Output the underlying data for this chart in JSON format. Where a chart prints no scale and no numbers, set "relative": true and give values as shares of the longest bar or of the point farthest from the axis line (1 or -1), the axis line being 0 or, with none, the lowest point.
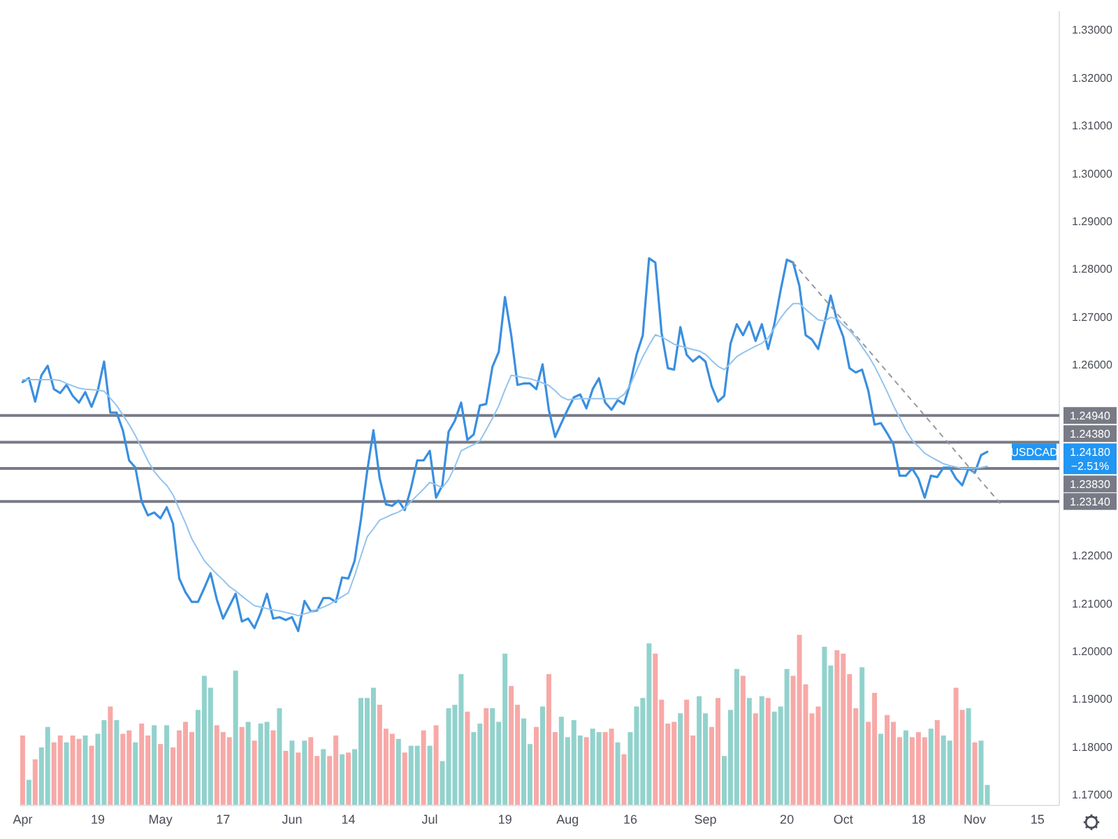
{
  "chart_data": [
    {
      "type": "line",
      "categories": [
        "Apr",
        null,
        null,
        null,
        null,
        null,
        null,
        null,
        null,
        null,
        null,
        null,
        "19",
        null,
        null,
        null,
        null,
        null,
        null,
        null,
        null,
        null,
        "May",
        null,
        null,
        null,
        null,
        null,
        null,
        null,
        null,
        null,
        "17",
        null,
        null,
        null,
        null,
        null,
        null,
        null,
        null,
        null,
        null,
        "Jun",
        null,
        null,
        null,
        null,
        null,
        null,
        null,
        null,
        "14",
        null,
        null,
        null,
        null,
        null,
        null,
        null,
        null,
        null,
        null,
        null,
        null,
        "Jul",
        null,
        null,
        null,
        null,
        null,
        null,
        null,
        null,
        null,
        null,
        null,
        "19",
        null,
        null,
        null,
        null,
        null,
        null,
        null,
        null,
        null,
        "Aug",
        null,
        null,
        null,
        null,
        null,
        null,
        null,
        null,
        null,
        "16",
        null,
        null,
        null,
        null,
        null,
        null,
        null,
        null,
        null,
        null,
        null,
        "Sep",
        null,
        null,
        null,
        null,
        null,
        null,
        null,
        null,
        null,
        null,
        null,
        null,
        "20",
        null,
        null,
        null,
        null,
        null,
        null,
        null,
        null,
        "Oct",
        null,
        null,
        null,
        null,
        null,
        null,
        null,
        null,
        null,
        null,
        null,
        "18",
        null,
        null,
        null,
        null,
        null,
        null,
        null,
        null,
        "Nov",
        null,
        null,
        null,
        null,
        null,
        null,
        null,
        null,
        null,
        "15",
        null,
        null,
        null
      ],
      "series": [
        {
          "type": "line",
          "color": "#3a8fe0",
          "values": [
            1.2564,
            1.2572,
            1.2523,
            1.2578,
            1.2598,
            1.2549,
            1.2541,
            1.2558,
            1.2535,
            1.2521,
            1.2543,
            1.2512,
            1.2546,
            1.2607,
            1.25,
            1.25,
            1.2463,
            1.24,
            1.2385,
            1.2314,
            1.2285,
            1.2291,
            1.2279,
            1.2302,
            1.2268,
            1.2153,
            1.2124,
            1.2104,
            1.2104,
            1.2133,
            1.2164,
            1.2109,
            1.2069,
            1.2095,
            1.2121,
            1.2063,
            1.2069,
            1.2049,
            1.2081,
            1.2121,
            1.2069,
            1.2072,
            1.2066,
            1.2072,
            1.2043,
            1.2106,
            1.2084,
            1.2086,
            1.2112,
            1.2112,
            1.2104,
            1.2155,
            1.2153,
            1.219,
            1.2276,
            1.2377,
            1.2463,
            1.2362,
            1.2308,
            1.2305,
            1.2316,
            1.2296,
            1.2342,
            1.24,
            1.24,
            1.242,
            1.2322,
            1.2348,
            1.246,
            1.2483,
            1.2521,
            1.2443,
            1.2454,
            1.2515,
            1.2518,
            1.2596,
            1.2627,
            1.2742,
            1.2662,
            1.2558,
            1.2561,
            1.2561,
            1.2549,
            1.2601,
            1.2506,
            1.2449,
            1.2478,
            1.2506,
            1.2532,
            1.2538,
            1.2509,
            1.2549,
            1.2572,
            1.2521,
            1.2506,
            1.2526,
            1.2518,
            1.2561,
            1.2621,
            1.2662,
            1.2823,
            1.2814,
            1.2667,
            1.2593,
            1.259,
            1.2679,
            1.2621,
            1.2607,
            1.2618,
            1.2607,
            1.2555,
            1.2523,
            1.2535,
            1.2644,
            1.2685,
            1.2662,
            1.269,
            1.265,
            1.2685,
            1.2633,
            1.2685,
            1.2756,
            1.282,
            1.2814,
            1.2765,
            1.2662,
            1.2653,
            1.2633,
            1.2687,
            1.2745,
            1.2693,
            1.2659,
            1.2593,
            1.2584,
            1.259,
            1.2546,
            1.2475,
            1.2478,
            1.2457,
            1.2434,
            1.2368,
            1.2368,
            1.2383,
            1.2362,
            1.2322,
            1.2368,
            1.2365,
            1.2385,
            1.2385,
            1.2362,
            1.2348,
            1.2383,
            1.2374,
            1.2411,
            1.2418,
            null,
            null,
            null,
            null,
            null,
            null,
            null,
            null,
            null,
            null,
            null
          ]
        },
        {
          "type": "line",
          "color": "#93c3ee",
          "values": [
            1.2569,
            1.2569,
            1.2569,
            1.2569,
            1.2569,
            1.2569,
            1.2567,
            1.2561,
            1.2556,
            1.2551,
            1.2549,
            1.2548,
            1.2547,
            1.2545,
            1.253,
            1.2515,
            1.2495,
            1.2475,
            1.2452,
            1.2426,
            1.2399,
            1.2377,
            1.2361,
            1.2348,
            1.2328,
            1.2298,
            1.2269,
            1.2236,
            1.2213,
            1.219,
            1.2176,
            1.2162,
            1.215,
            1.2136,
            1.2127,
            1.2116,
            1.2106,
            1.2096,
            1.2093,
            1.209,
            1.2087,
            1.2085,
            1.2082,
            1.2079,
            1.2075,
            1.2079,
            1.2083,
            1.2088,
            1.2093,
            1.2099,
            1.2107,
            1.2115,
            1.2123,
            1.2159,
            1.22,
            1.224,
            1.2257,
            1.2275,
            1.2281,
            1.2287,
            1.2292,
            1.23,
            1.2314,
            1.2327,
            1.234,
            1.2354,
            1.2349,
            1.2343,
            1.236,
            1.2387,
            1.242,
            1.2427,
            1.2433,
            1.2441,
            1.2464,
            1.2488,
            1.2514,
            1.2548,
            1.2578,
            1.2576,
            1.2573,
            1.2571,
            1.2567,
            1.2562,
            1.2557,
            1.2546,
            1.2533,
            1.2527,
            1.2528,
            1.2529,
            1.2529,
            1.2529,
            1.2529,
            1.2529,
            1.2529,
            1.2529,
            1.2538,
            1.2558,
            1.2588,
            1.2617,
            1.2641,
            1.2663,
            1.2658,
            1.2651,
            1.2643,
            1.2639,
            1.2636,
            1.2632,
            1.2629,
            1.2622,
            1.2609,
            1.2597,
            1.259,
            1.2603,
            1.2617,
            1.2625,
            1.2632,
            1.2639,
            1.2645,
            1.2656,
            1.2677,
            1.2698,
            1.2715,
            1.2728,
            1.2728,
            1.2716,
            1.2705,
            1.2694,
            1.2692,
            1.2699,
            1.2697,
            1.2683,
            1.2672,
            1.2657,
            1.2638,
            1.2619,
            1.2597,
            1.2571,
            1.2544,
            1.2515,
            1.2489,
            1.2463,
            1.2442,
            1.2429,
            1.2415,
            1.2407,
            1.24,
            1.2393,
            1.2389,
            1.2386,
            1.2383,
            1.2383,
            1.2384,
            1.2385,
            1.2388,
            null,
            null,
            null,
            null,
            null,
            null,
            null,
            null,
            null,
            null,
            null
          ]
        },
        {
          "type": "line",
          "color": "#9598a1",
          "line_style": "dashed",
          "values": [
            null,
            null,
            null,
            null,
            null,
            null,
            null,
            null,
            null,
            null,
            null,
            null,
            null,
            null,
            null,
            null,
            null,
            null,
            null,
            null,
            null,
            null,
            null,
            null,
            null,
            null,
            null,
            null,
            null,
            null,
            null,
            null,
            null,
            null,
            null,
            null,
            null,
            null,
            null,
            null,
            null,
            null,
            null,
            null,
            null,
            null,
            null,
            null,
            null,
            null,
            null,
            null,
            null,
            null,
            null,
            null,
            null,
            null,
            null,
            null,
            null,
            null,
            null,
            null,
            null,
            null,
            null,
            null,
            null,
            null,
            null,
            null,
            null,
            null,
            null,
            null,
            null,
            null,
            null,
            null,
            null,
            null,
            null,
            null,
            null,
            null,
            null,
            null,
            null,
            null,
            null,
            null,
            null,
            null,
            null,
            null,
            null,
            null,
            null,
            null,
            null,
            null,
            null,
            null,
            null,
            null,
            null,
            null,
            null,
            null,
            null,
            null,
            null,
            null,
            null,
            null,
            null,
            null,
            null,
            null,
            null,
            null,
            null,
            1.2814,
            null,
            null,
            null,
            null,
            null,
            null,
            null,
            null,
            null,
            null,
            null,
            null,
            null,
            null,
            null,
            null,
            null,
            null,
            null,
            null,
            null,
            null,
            null,
            null,
            null,
            null,
            null,
            null,
            null,
            null,
            null,
            null,
            1.2311,
            null,
            null,
            null,
            null,
            null,
            null,
            null,
            null,
            null
          ]
        }
      ],
      "ylim": [
        1.1678,
        1.334
      ],
      "yticks": [
        {
          "value": 1.17,
          "label": "1.17000"
        },
        {
          "value": 1.18,
          "label": "1.18000"
        },
        {
          "value": 1.19,
          "label": "1.19000"
        },
        {
          "value": 1.2,
          "label": "1.20000"
        },
        {
          "value": 1.21,
          "label": "1.21000"
        },
        {
          "value": 1.22,
          "label": "1.22000"
        },
        {
          "value": 1.26,
          "label": "1.26000"
        },
        {
          "value": 1.27,
          "label": "1.27000"
        },
        {
          "value": 1.28,
          "label": "1.28000"
        },
        {
          "value": 1.29,
          "label": "1.29000"
        },
        {
          "value": 1.3,
          "label": "1.30000"
        },
        {
          "value": 1.31,
          "label": "1.31000"
        },
        {
          "value": 1.32,
          "label": "1.32000"
        },
        {
          "value": 1.33,
          "label": "1.33000"
        }
      ],
      "ref_lines": [
        {
          "axis": "y",
          "value": 1.2494,
          "label": "1.24940",
          "color": "#787b86"
        },
        {
          "axis": "y",
          "value": 1.2438,
          "label": "1.24380",
          "color": "#787b86"
        },
        {
          "axis": "y",
          "value": 1.2383,
          "label": "1.23830",
          "color": "#787b86"
        },
        {
          "axis": "y",
          "value": 1.2314,
          "label": "1.23140",
          "color": "#787b86"
        }
      ],
      "annotations": [
        {
          "text": "USDCAD",
          "y": 1.2418
        },
        "1.24180",
        "−2.51%"
      ]
    },
    {
      "type": "bar",
      "relative": true,
      "categories": [
        null,
        null,
        null,
        null,
        null,
        null,
        null,
        null,
        null,
        null,
        null,
        null,
        null,
        null,
        null,
        null,
        null,
        null,
        null,
        null,
        null,
        null,
        null,
        null,
        null,
        null,
        null,
        null,
        null,
        null,
        null,
        null,
        null,
        null,
        null,
        null,
        null,
        null,
        null,
        null,
        null,
        null,
        null,
        null,
        null,
        null,
        null,
        null,
        null,
        null,
        null,
        null,
        null,
        null,
        null,
        null,
        null,
        null,
        null,
        null,
        null,
        null,
        null,
        null,
        null,
        null,
        null,
        null,
        null,
        null,
        null,
        null,
        null,
        null,
        null,
        null,
        null,
        null,
        null,
        null,
        null,
        null,
        null,
        null,
        null,
        null,
        null,
        null,
        null,
        null,
        null,
        null,
        null,
        null,
        null,
        null,
        null,
        null,
        null,
        null,
        null,
        null,
        null,
        null,
        null,
        null,
        null,
        null,
        null,
        null,
        null,
        null,
        null,
        null,
        null,
        null,
        null,
        null,
        null,
        null,
        null,
        null,
        null,
        null,
        null,
        null,
        null,
        null,
        null,
        null,
        null,
        null,
        null,
        null,
        null,
        null,
        null,
        null,
        null,
        null,
        null,
        null,
        null,
        null,
        null,
        null,
        null,
        null,
        null,
        null,
        null,
        null,
        null,
        null,
        null,
        null,
        null,
        null,
        null,
        null,
        null,
        null,
        null,
        null,
        null,
        null
      ],
      "values": [
        0.41,
        0.15,
        0.27,
        0.34,
        0.46,
        0.37,
        0.41,
        0.37,
        0.41,
        0.39,
        0.41,
        0.35,
        0.42,
        0.5,
        0.58,
        0.5,
        0.42,
        0.44,
        0.37,
        0.48,
        0.41,
        0.47,
        0.36,
        0.47,
        0.34,
        0.44,
        0.49,
        0.43,
        0.56,
        0.76,
        0.69,
        0.47,
        0.43,
        0.4,
        0.79,
        0.46,
        0.49,
        0.38,
        0.48,
        0.49,
        0.44,
        0.57,
        0.32,
        0.38,
        0.31,
        0.38,
        0.4,
        0.29,
        0.33,
        0.29,
        0.41,
        0.3,
        0.31,
        0.33,
        0.63,
        0.63,
        0.69,
        0.59,
        0.45,
        0.42,
        0.39,
        0.31,
        0.35,
        0.35,
        0.44,
        0.35,
        0.47,
        0.26,
        0.57,
        0.59,
        0.77,
        0.55,
        0.43,
        0.48,
        0.57,
        0.57,
        0.49,
        0.89,
        0.7,
        0.59,
        0.51,
        0.36,
        0.46,
        0.58,
        0.77,
        0.43,
        0.52,
        0.4,
        0.5,
        0.41,
        0.4,
        0.45,
        0.43,
        0.43,
        0.45,
        0.37,
        0.3,
        0.43,
        0.58,
        0.63,
        0.95,
        0.89,
        0.62,
        0.48,
        0.49,
        0.54,
        0.62,
        0.41,
        0.64,
        0.54,
        0.46,
        0.63,
        0.29,
        0.56,
        0.8,
        0.76,
        0.63,
        0.54,
        0.64,
        0.63,
        0.55,
        0.58,
        0.8,
        0.76,
        1,
        0.71,
        0.54,
        0.58,
        0.93,
        0.82,
        0.91,
        0.89,
        0.77,
        0.57,
        0.81,
        0.49,
        0.66,
        0.42,
        0.53,
        0.49,
        0.4,
        0.44,
        0.4,
        0.43,
        0.4,
        0.45,
        0.5,
        0.41,
        0.38,
        0.69,
        0.56,
        0.57,
        0.37,
        0.38,
        0.12,
        null,
        null,
        null,
        null,
        null,
        null,
        null,
        null,
        null,
        null,
        null
      ],
      "colors": [
        "#f7a9a7",
        "#92d2cc",
        "#f7a9a7",
        "#92d2cc",
        "#92d2cc",
        "#f7a9a7",
        "#f7a9a7",
        "#92d2cc",
        "#f7a9a7",
        "#f7a9a7",
        "#92d2cc",
        "#f7a9a7",
        "#92d2cc",
        "#92d2cc",
        "#f7a9a7",
        "#92d2cc",
        "#f7a9a7",
        "#f7a9a7",
        "#92d2cc",
        "#f7a9a7",
        "#f7a9a7",
        "#92d2cc",
        "#f7a9a7",
        "#92d2cc",
        "#f7a9a7",
        "#f7a9a7",
        "#f7a9a7",
        "#f7a9a7",
        "#92d2cc",
        "#92d2cc",
        "#92d2cc",
        "#f7a9a7",
        "#f7a9a7",
        "#f7a9a7",
        "#92d2cc",
        "#f7a9a7",
        "#92d2cc",
        "#f7a9a7",
        "#92d2cc",
        "#92d2cc",
        "#f7a9a7",
        "#92d2cc",
        "#f7a9a7",
        "#92d2cc",
        "#f7a9a7",
        "#92d2cc",
        "#f7a9a7",
        "#f7a9a7",
        "#92d2cc",
        "#f7a9a7",
        "#f7a9a7",
        "#92d2cc",
        "#f7a9a7",
        "#92d2cc",
        "#92d2cc",
        "#92d2cc",
        "#92d2cc",
        "#f7a9a7",
        "#f7a9a7",
        "#f7a9a7",
        "#92d2cc",
        "#f7a9a7",
        "#92d2cc",
        "#92d2cc",
        "#f7a9a7",
        "#92d2cc",
        "#f7a9a7",
        "#92d2cc",
        "#92d2cc",
        "#92d2cc",
        "#92d2cc",
        "#f7a9a7",
        "#92d2cc",
        "#92d2cc",
        "#f7a9a7",
        "#92d2cc",
        "#92d2cc",
        "#92d2cc",
        "#f7a9a7",
        "#f7a9a7",
        "#92d2cc",
        "#92d2cc",
        "#f7a9a7",
        "#92d2cc",
        "#f7a9a7",
        "#f7a9a7",
        "#92d2cc",
        "#92d2cc",
        "#92d2cc",
        "#92d2cc",
        "#f7a9a7",
        "#92d2cc",
        "#92d2cc",
        "#f7a9a7",
        "#f7a9a7",
        "#92d2cc",
        "#f7a9a7",
        "#92d2cc",
        "#92d2cc",
        "#92d2cc",
        "#92d2cc",
        "#f7a9a7",
        "#f7a9a7",
        "#f7a9a7",
        "#f7a9a7",
        "#92d2cc",
        "#f7a9a7",
        "#f7a9a7",
        "#92d2cc",
        "#92d2cc",
        "#f7a9a7",
        "#f7a9a7",
        "#92d2cc",
        "#92d2cc",
        "#92d2cc",
        "#f7a9a7",
        "#92d2cc",
        "#f7a9a7",
        "#92d2cc",
        "#f7a9a7",
        "#92d2cc",
        "#92d2cc",
        "#92d2cc",
        "#f7a9a7",
        "#f7a9a7",
        "#f7a9a7",
        "#f7a9a7",
        "#f7a9a7",
        "#92d2cc",
        "#92d2cc",
        "#f7a9a7",
        "#f7a9a7",
        "#f7a9a7",
        "#f7a9a7",
        "#92d2cc",
        "#f7a9a7",
        "#f7a9a7",
        "#92d2cc",
        "#f7a9a7",
        "#f7a9a7",
        "#f7a9a7",
        "#92d2cc",
        "#f7a9a7",
        "#f7a9a7",
        "#f7a9a7",
        "#92d2cc",
        "#f7a9a7",
        "#92d2cc",
        "#92d2cc",
        "#f7a9a7",
        "#f7a9a7",
        "#92d2cc",
        "#f7a9a7",
        "#92d2cc",
        "#92d2cc",
        null,
        null,
        null,
        null,
        null,
        null,
        null,
        null,
        null,
        null,
        null
      ]
    }
  ]
}
